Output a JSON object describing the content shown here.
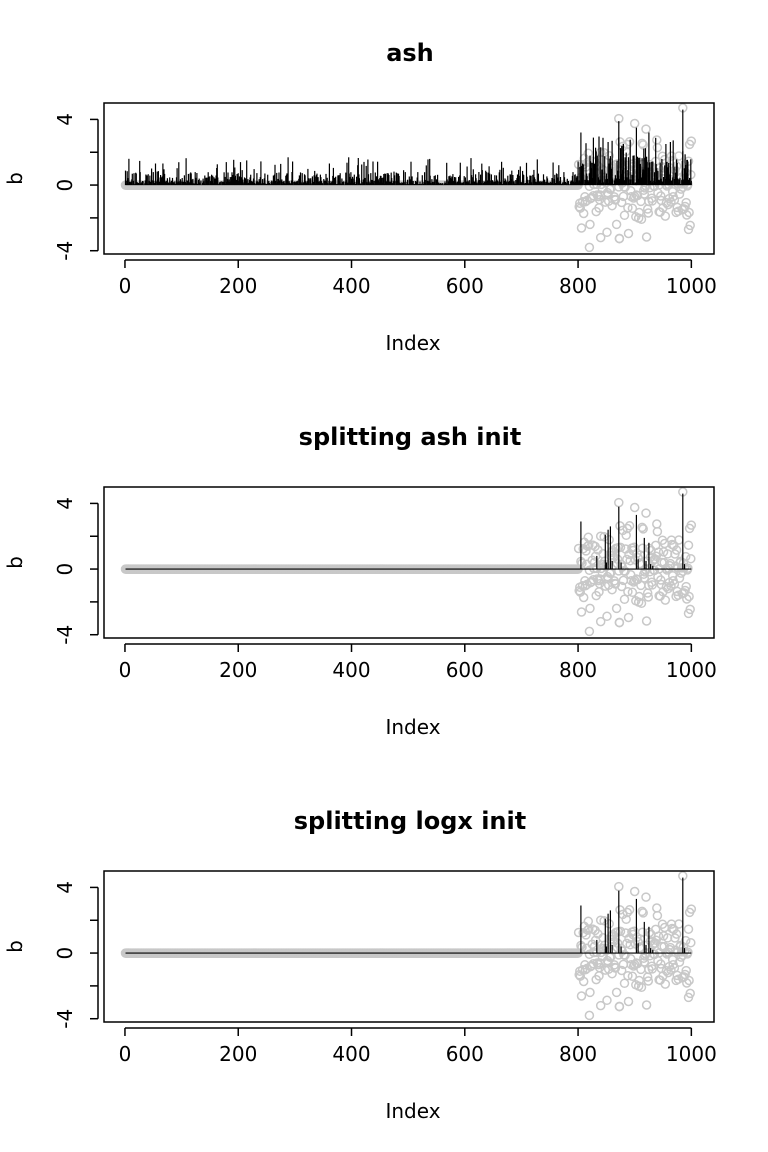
{
  "chart_data": [
    {
      "type": "scatter",
      "title": "ash",
      "xlabel": "Index",
      "ylabel": "b",
      "xlim": [
        0,
        1000
      ],
      "ylim": [
        -4,
        4
      ],
      "x_ticks": [
        "0",
        "200",
        "400",
        "600",
        "800",
        "1000"
      ],
      "y_ticks": [
        "-4",
        "0",
        "4"
      ],
      "colors": {
        "points": "#c8c8c8",
        "lines": "#000000"
      },
      "series": [
        {
          "kind": "points",
          "description": "true b: 0 for indices 1-800, values between about -3.9 and 4.7 for indices 801-1000"
        },
        {
          "kind": "vertical-lines",
          "description": "estimated b: many small spikes (up to ~1.7) for indices 1-800, larger spikes up to ~4.6 for indices 801-1000"
        }
      ]
    },
    {
      "type": "scatter",
      "title": "splitting ash init",
      "xlabel": "Index",
      "ylabel": "b",
      "xlim": [
        0,
        1000
      ],
      "ylim": [
        -4,
        4
      ],
      "x_ticks": [
        "0",
        "200",
        "400",
        "600",
        "800",
        "1000"
      ],
      "y_ticks": [
        "-4",
        "0",
        "4"
      ],
      "colors": {
        "points": "#c8c8c8",
        "lines": "#000000"
      },
      "series": [
        {
          "kind": "points",
          "description": "true b"
        },
        {
          "kind": "vertical-lines",
          "description": "estimated b: zero for indices 1-800, sparse spikes for indices 801-1000"
        }
      ],
      "spikes": [
        [
          805,
          2.9
        ],
        [
          833,
          0.8
        ],
        [
          848,
          2.1
        ],
        [
          853,
          2.4
        ],
        [
          857,
          2.6
        ],
        [
          872,
          3.8
        ],
        [
          903,
          3.3
        ],
        [
          917,
          1.9
        ],
        [
          925,
          1.6
        ],
        [
          985,
          4.6
        ]
      ]
    },
    {
      "type": "scatter",
      "title": "splitting logx init",
      "xlabel": "Index",
      "ylabel": "b",
      "xlim": [
        0,
        1000
      ],
      "ylim": [
        -4,
        4
      ],
      "x_ticks": [
        "0",
        "200",
        "400",
        "600",
        "800",
        "1000"
      ],
      "y_ticks": [
        "-4",
        "0",
        "4"
      ],
      "colors": {
        "points": "#c8c8c8",
        "lines": "#000000"
      },
      "series": [
        {
          "kind": "points",
          "description": "true b"
        },
        {
          "kind": "vertical-lines",
          "description": "estimated b: zero for indices 1-800, sparse spikes for indices 801-1000"
        }
      ],
      "spikes": [
        [
          805,
          2.9
        ],
        [
          833,
          0.8
        ],
        [
          848,
          2.1
        ],
        [
          853,
          2.4
        ],
        [
          857,
          2.6
        ],
        [
          872,
          3.8
        ],
        [
          903,
          3.3
        ],
        [
          917,
          1.9
        ],
        [
          925,
          1.6
        ],
        [
          985,
          4.6
        ]
      ]
    }
  ]
}
